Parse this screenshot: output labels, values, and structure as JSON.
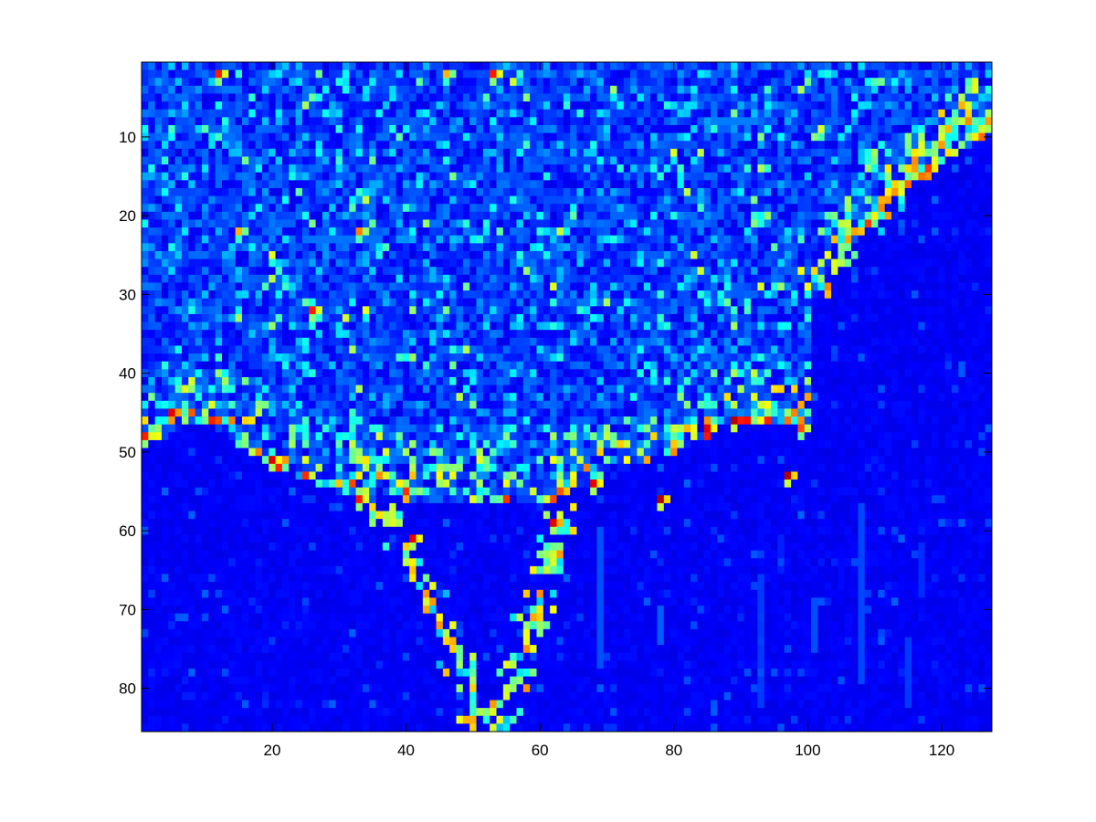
{
  "chart_data": {
    "type": "heatmap",
    "title": "",
    "xlabel": "",
    "ylabel": "",
    "x_range": [
      0.5,
      127.5
    ],
    "y_range": [
      0.5,
      85.5
    ],
    "y_reversed": true,
    "columns": 127,
    "rows": 85,
    "colormap": "jet",
    "grid": false,
    "x_ticks": [
      20,
      40,
      60,
      80,
      100,
      120
    ],
    "y_ticks": [
      10,
      20,
      30,
      40,
      50,
      60,
      70,
      80
    ],
    "x_tick_labels": [
      "20",
      "40",
      "60",
      "80",
      "100",
      "120"
    ],
    "y_tick_labels": [
      "10",
      "20",
      "30",
      "40",
      "50",
      "60",
      "70",
      "80"
    ],
    "structure": {
      "upper_region_rows": [
        1,
        55
      ],
      "lower_region_start_row": 56,
      "boundary_points": [
        [
          1,
          49
        ],
        [
          10,
          46
        ],
        [
          20,
          52
        ],
        [
          30,
          55
        ],
        [
          40,
          56
        ],
        [
          60,
          57
        ],
        [
          70,
          53
        ],
        [
          80,
          50
        ],
        [
          90,
          46
        ],
        [
          100,
          46
        ],
        [
          101,
          30
        ],
        [
          110,
          20
        ],
        [
          120,
          13
        ],
        [
          127,
          10
        ]
      ],
      "hot_branches": [
        {
          "name": "left arm",
          "points": [
            [
              35,
              57
            ],
            [
              38,
              60
            ],
            [
              41,
              64
            ],
            [
              43,
              68
            ],
            [
              45,
              72
            ],
            [
              47,
              76
            ],
            [
              49,
              80
            ],
            [
              51,
              84
            ]
          ]
        },
        {
          "name": "right arm",
          "points": [
            [
              64,
              58
            ],
            [
              63,
              62
            ],
            [
              61,
              66
            ],
            [
              59,
              70
            ],
            [
              58,
              74
            ],
            [
              57,
              78
            ],
            [
              56,
              82
            ],
            [
              55,
              85
            ]
          ]
        },
        {
          "name": "right diagonal",
          "points": [
            [
              101,
              28
            ],
            [
              104,
              25
            ],
            [
              108,
              22
            ],
            [
              112,
              18
            ],
            [
              116,
              14
            ],
            [
              120,
              11
            ],
            [
              124,
              7
            ],
            [
              127,
              4
            ]
          ]
        }
      ],
      "hot_spots": [
        {
          "x": 12,
          "y": 2,
          "value": 0.85
        },
        {
          "x": 46,
          "y": 2,
          "value": 0.7
        },
        {
          "x": 53,
          "y": 2,
          "value": 0.85
        },
        {
          "x": 33,
          "y": 22,
          "value": 0.75
        },
        {
          "x": 15,
          "y": 22,
          "value": 0.7
        },
        {
          "x": 26,
          "y": 32,
          "value": 0.85
        },
        {
          "x": 1,
          "y": 48,
          "value": 0.85
        },
        {
          "x": 5,
          "y": 45,
          "value": 0.9
        },
        {
          "x": 20,
          "y": 51,
          "value": 0.9
        },
        {
          "x": 33,
          "y": 56,
          "value": 0.85
        },
        {
          "x": 41,
          "y": 61,
          "value": 0.9
        },
        {
          "x": 68,
          "y": 54,
          "value": 0.9
        },
        {
          "x": 78,
          "y": 56,
          "value": 0.95
        },
        {
          "x": 85,
          "y": 47,
          "value": 0.9
        },
        {
          "x": 89,
          "y": 46,
          "value": 0.95
        },
        {
          "x": 97,
          "y": 53,
          "value": 0.95
        },
        {
          "x": 99,
          "y": 47,
          "value": 0.8
        },
        {
          "x": 62,
          "y": 59,
          "value": 0.9
        }
      ]
    }
  }
}
